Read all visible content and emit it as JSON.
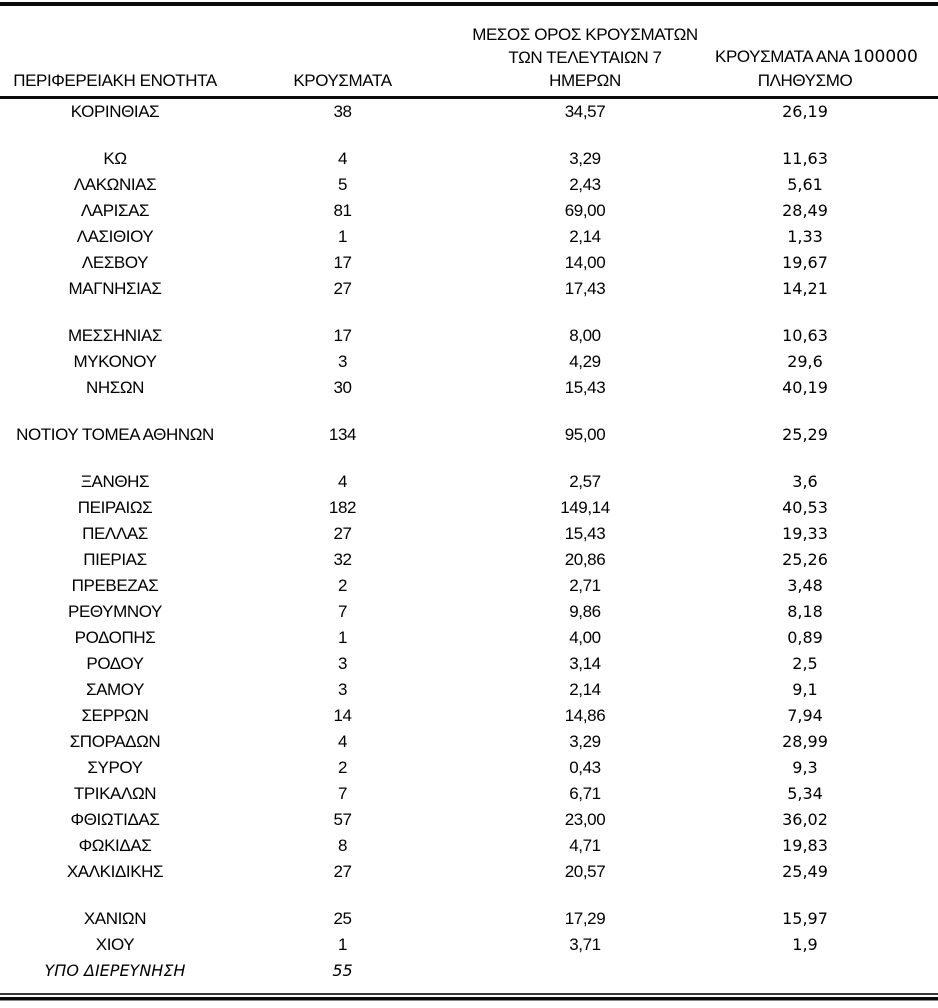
{
  "table": {
    "header": {
      "col1": "ΠΕΡΙΦΕΡΕΙΑΚΗ ΕΝΟΤΗΤΑ",
      "col2": "ΚΡΟΥΣΜΑΤΑ",
      "col3_line1": "ΜΕΣΟΣ ΟΡΟΣ ΚΡΟΥΣΜΑΤΩΝ",
      "col3_line2": "ΤΩΝ ΤΕΛΕΥΤΑΙΩΝ 7",
      "col3_line3": "ΗΜΕΡΩΝ",
      "col4_line1_label": "ΚΡΟΥΣΜΑΤΑ ΑΝΑ ",
      "col4_line1_number": "100000",
      "col4_line2": "ΠΛΗΘΥΣΜΟ"
    },
    "colors": {
      "text": "#000000",
      "rule": "#0a0a0a",
      "background": "#ffffff"
    },
    "rows": [
      {
        "region": "ΚΟΡΙΝΘΙΑΣ",
        "cases": "38",
        "avg7": "34,57",
        "per100k": "26,19"
      },
      {
        "spacer": true
      },
      {
        "region": "ΚΩ",
        "cases": "4",
        "avg7": "3,29",
        "per100k": "11,63"
      },
      {
        "region": "ΛΑΚΩΝΙΑΣ",
        "cases": "5",
        "avg7": "2,43",
        "per100k": "5,61"
      },
      {
        "region": "ΛΑΡΙΣΑΣ",
        "cases": "81",
        "avg7": "69,00",
        "per100k": "28,49"
      },
      {
        "region": "ΛΑΣΙΘΙΟΥ",
        "cases": "1",
        "avg7": "2,14",
        "per100k": "1,33"
      },
      {
        "region": "ΛΕΣΒΟΥ",
        "cases": "17",
        "avg7": "14,00",
        "per100k": "19,67"
      },
      {
        "region": "ΜΑΓΝΗΣΙΑΣ",
        "cases": "27",
        "avg7": "17,43",
        "per100k": "14,21"
      },
      {
        "spacer": true
      },
      {
        "region": "ΜΕΣΣΗΝΙΑΣ",
        "cases": "17",
        "avg7": "8,00",
        "per100k": "10,63"
      },
      {
        "region": "ΜΥΚΟΝΟΥ",
        "cases": "3",
        "avg7": "4,29",
        "per100k": "29,6"
      },
      {
        "region": "ΝΗΣΩΝ",
        "cases": "30",
        "avg7": "15,43",
        "per100k": "40,19"
      },
      {
        "spacer": true
      },
      {
        "region": "ΝΟΤΙΟΥ ΤΟΜΕΑ ΑΘΗΝΩΝ",
        "cases": "134",
        "avg7": "95,00",
        "per100k": "25,29"
      },
      {
        "spacer": true
      },
      {
        "region": "ΞΑΝΘΗΣ",
        "cases": "4",
        "avg7": "2,57",
        "per100k": "3,6"
      },
      {
        "region": "ΠΕΙΡΑΙΩΣ",
        "cases": "182",
        "avg7": "149,14",
        "per100k": "40,53"
      },
      {
        "region": "ΠΕΛΛΑΣ",
        "cases": "27",
        "avg7": "15,43",
        "per100k": "19,33"
      },
      {
        "region": "ΠΙΕΡΙΑΣ",
        "cases": "32",
        "avg7": "20,86",
        "per100k": "25,26"
      },
      {
        "region": "ΠΡΕΒΕΖΑΣ",
        "cases": "2",
        "avg7": "2,71",
        "per100k": "3,48"
      },
      {
        "region": "ΡΕΘΥΜΝΟΥ",
        "cases": "7",
        "avg7": "9,86",
        "per100k": "8,18"
      },
      {
        "region": "ΡΟΔΟΠΗΣ",
        "cases": "1",
        "avg7": "4,00",
        "per100k": "0,89"
      },
      {
        "region": "ΡΟΔΟΥ",
        "cases": "3",
        "avg7": "3,14",
        "per100k": "2,5"
      },
      {
        "region": "ΣΑΜΟΥ",
        "cases": "3",
        "avg7": "2,14",
        "per100k": "9,1"
      },
      {
        "region": "ΣΕΡΡΩΝ",
        "cases": "14",
        "avg7": "14,86",
        "per100k": "7,94"
      },
      {
        "region": "ΣΠΟΡΑΔΩΝ",
        "cases": "4",
        "avg7": "3,29",
        "per100k": "28,99"
      },
      {
        "region": "ΣΥΡΟΥ",
        "cases": "2",
        "avg7": "0,43",
        "per100k": "9,3"
      },
      {
        "region": "ΤΡΙΚΑΛΩΝ",
        "cases": "7",
        "avg7": "6,71",
        "per100k": "5,34"
      },
      {
        "region": "ΦΘΙΩΤΙΔΑΣ",
        "cases": "57",
        "avg7": "23,00",
        "per100k": "36,02"
      },
      {
        "region": "ΦΩΚΙΔΑΣ",
        "cases": "8",
        "avg7": "4,71",
        "per100k": "19,83"
      },
      {
        "region": "ΧΑΛΚΙΔΙΚΗΣ",
        "cases": "27",
        "avg7": "20,57",
        "per100k": "25,49"
      },
      {
        "spacer": true
      },
      {
        "region": "ΧΑΝΙΩΝ",
        "cases": "25",
        "avg7": "17,29",
        "per100k": "15,97"
      },
      {
        "region": "ΧΙΟΥ",
        "cases": "1",
        "avg7": "3,71",
        "per100k": "1,9"
      },
      {
        "region": "ΥΠΟ ΔΙΕΡΕΥΝΗΣΗ",
        "cases": "55",
        "avg7": "",
        "per100k": "",
        "italic": true
      }
    ]
  }
}
